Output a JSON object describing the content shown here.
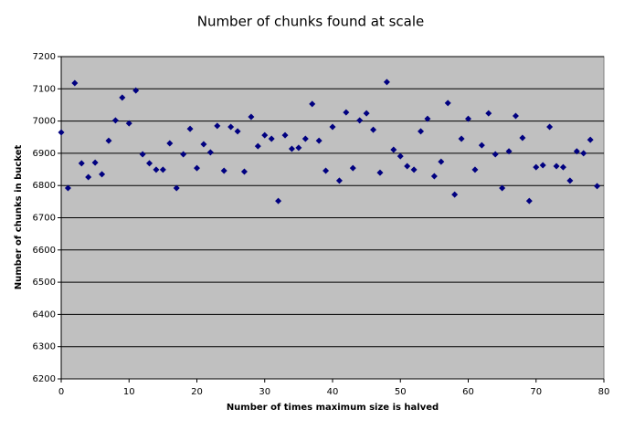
{
  "chart_data": {
    "type": "scatter",
    "title": "Number of chunks found at scale",
    "x_label": "Number of times maximum size is halved",
    "y_label": "Number of chunks in bucket",
    "x": [
      0,
      1,
      2,
      3,
      4,
      5,
      6,
      7,
      8,
      9,
      10,
      11,
      12,
      13,
      14,
      15,
      16,
      17,
      18,
      19,
      20,
      21,
      22,
      23,
      24,
      25,
      26,
      27,
      28,
      29,
      30,
      31,
      32,
      33,
      34,
      35,
      36,
      37,
      38,
      39,
      40,
      41,
      42,
      43,
      44,
      45,
      46,
      47,
      48,
      49,
      50,
      51,
      52,
      53,
      54,
      55,
      56,
      57,
      58,
      59,
      60,
      61,
      62,
      63,
      64,
      65,
      66,
      67,
      68,
      69,
      70,
      71,
      72,
      73,
      74,
      75,
      76,
      77,
      78,
      79
    ],
    "values": [
      6965,
      6792,
      7118,
      6869,
      6826,
      6871,
      6835,
      6939,
      7002,
      7073,
      6993,
      7095,
      6897,
      6869,
      6849,
      6849,
      6931,
      6792,
      6897,
      6976,
      6854,
      6928,
      6903,
      6985,
      6846,
      6982,
      6968,
      6843,
      7013,
      6922,
      6956,
      6945,
      6752,
      6956,
      6914,
      6917,
      6945,
      7053,
      6939,
      6846,
      6982,
      6815,
      7027,
      6854,
      7002,
      7024,
      6973,
      6840,
      7121,
      6911,
      6891,
      6860,
      6849,
      6968,
      7007,
      6829,
      6874,
      7056,
      6772,
      6945,
      7007,
      6849,
      6925,
      7024,
      6897,
      6792,
      6906,
      7016,
      6948,
      6752,
      6857,
      6863,
      6982,
      6860,
      6857,
      6815,
      6906,
      6900,
      6942,
      6798
    ],
    "color": "#000080",
    "plot_background": "#c0c0c0",
    "grid": true,
    "xlim": [
      0,
      80
    ],
    "xticks": [
      0,
      10,
      20,
      30,
      40,
      50,
      60,
      70,
      80
    ],
    "ylim": [
      6200,
      7200
    ],
    "yticks": [
      6200,
      6300,
      6400,
      6500,
      6600,
      6700,
      6800,
      6900,
      7000,
      7100,
      7200
    ]
  }
}
